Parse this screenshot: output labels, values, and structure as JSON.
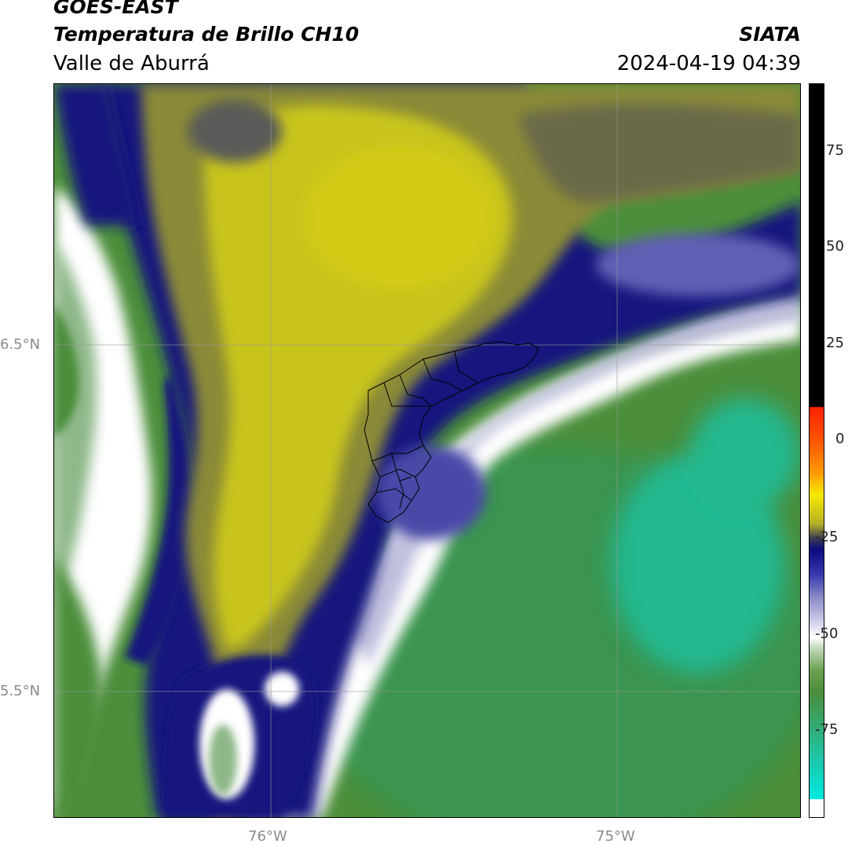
{
  "header": {
    "satellite": "GOES-EAST",
    "product": "Temperatura de Brillo CH10",
    "brand": "SIATA",
    "region": "Valle de Aburrá",
    "datetime": "2024-04-19 04:39"
  },
  "axes": {
    "lat_labels": [
      "6.5°N",
      "5.5°N"
    ],
    "lon_labels": [
      "76°W",
      "75°W"
    ]
  },
  "colorbar": {
    "ticks": [
      "75",
      "50",
      "25",
      "0",
      "-25",
      "-50",
      "-75"
    ],
    "colors": {
      "warm_black": "#000000",
      "red": "#ff2000",
      "orange": "#ff8c00",
      "yellow": "#f5e800",
      "olive": "#b5b028",
      "navy": "#0a0a80",
      "lavender": "#c8c8e8",
      "white": "#ffffff",
      "green": "#4b8e3b",
      "teal": "#1ec6a8",
      "cyan": "#00e8e0"
    }
  },
  "map_colors": {
    "dry_yellow": "#c8c41c",
    "olive_dark": "#8a8a38",
    "grey_olive": "#5a5a58",
    "navy": "#13137e",
    "blue_mid": "#4a4aa8",
    "lavender": "#c0c0de",
    "white": "#ffffff",
    "green_light": "#8fb88a",
    "green": "#4b8e3b",
    "green_deep": "#3a9450",
    "teal": "#20b890"
  }
}
